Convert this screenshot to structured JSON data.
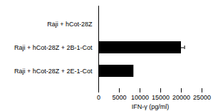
{
  "chart_data": {
    "type": "bar",
    "orientation": "horizontal",
    "categories": [
      "Raji + hCot-28Z",
      "Raji + hCot-28Z + 2B-1-Cot",
      "Raji + hCot-28Z + 2E-1-Cot"
    ],
    "values": [
      0,
      20000,
      8500
    ],
    "error": [
      0,
      800,
      0
    ],
    "xlabel": "IFN-γ (pg/ml)",
    "xlim": [
      0,
      25000
    ],
    "xticks": [
      0,
      5000,
      10000,
      15000,
      20000,
      25000
    ]
  }
}
